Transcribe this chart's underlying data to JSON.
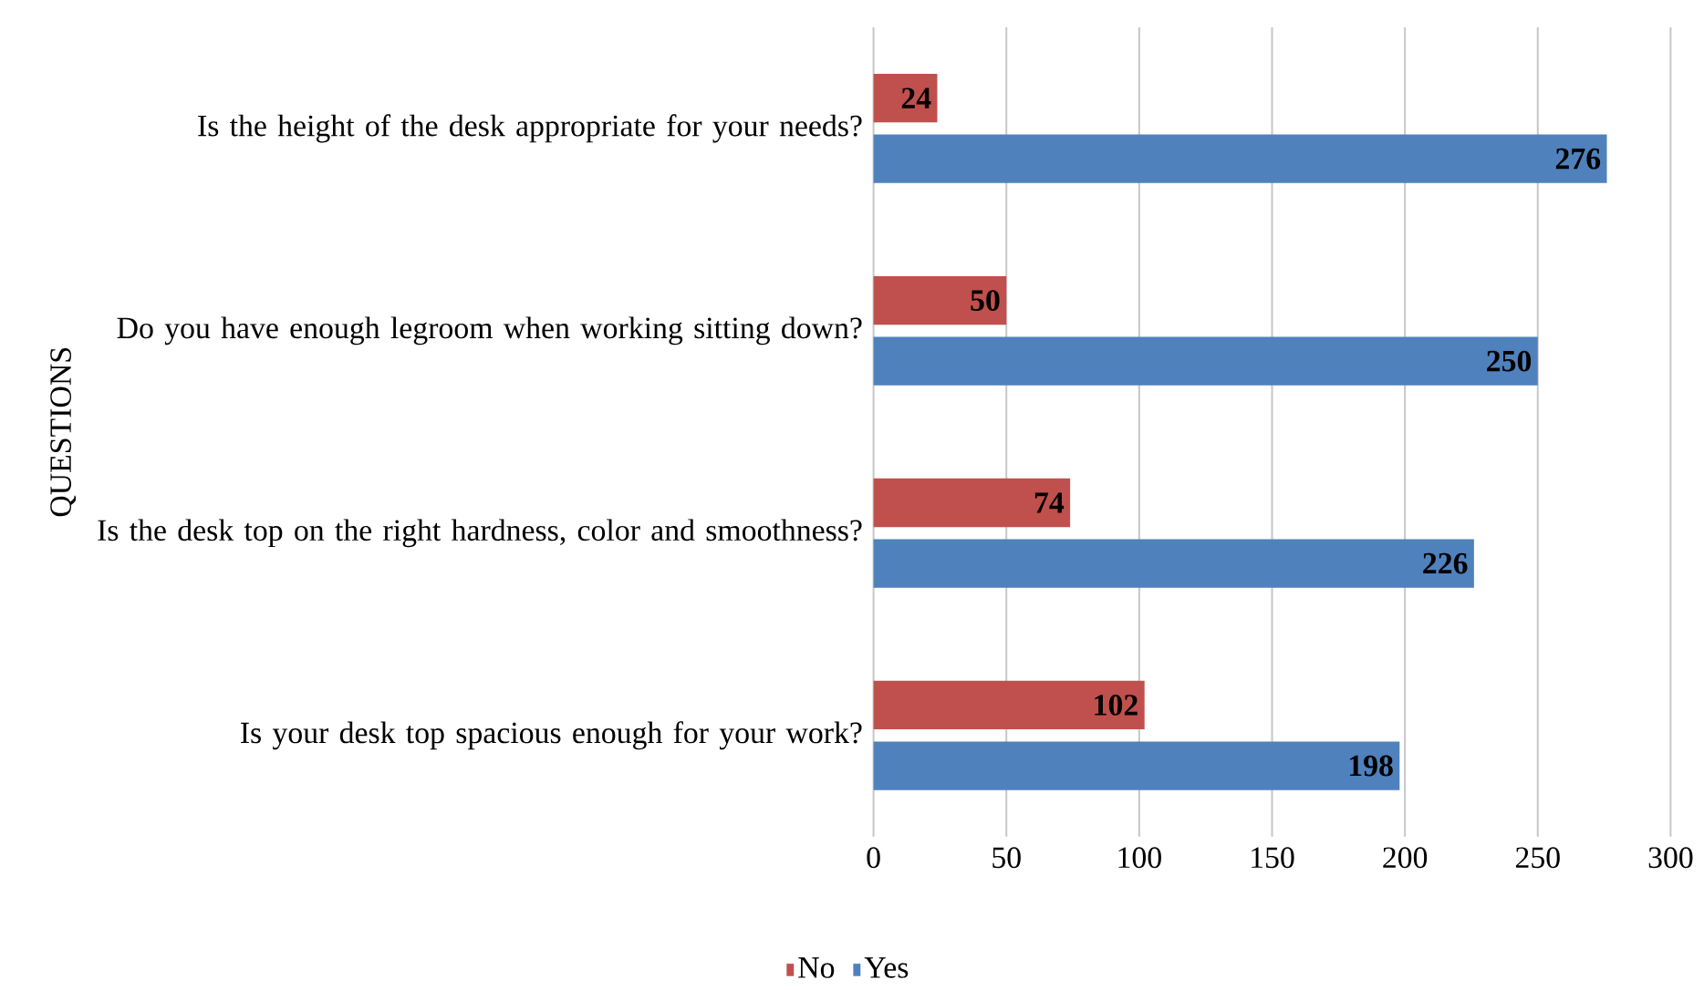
{
  "chart_data": {
    "type": "bar",
    "orientation": "horizontal",
    "ylabel": "QUESTIONS",
    "categories": [
      "Is the height of the desk appropriate for your needs?",
      "Do you have enough legroom when working sitting down?",
      "Is the desk top on the right hardness, color and smoothness?",
      "Is your desk top spacious enough for your work?"
    ],
    "series": [
      {
        "name": "No",
        "color": "#c0504d",
        "values": [
          24,
          50,
          74,
          102
        ]
      },
      {
        "name": "Yes",
        "color": "#4f81bd",
        "values": [
          276,
          250,
          226,
          198
        ]
      }
    ],
    "xlim": [
      0,
      300
    ],
    "xticks": [
      0,
      50,
      100,
      150,
      200,
      250,
      300
    ],
    "grid": "x",
    "legend": "bottom",
    "data_labels": true
  }
}
